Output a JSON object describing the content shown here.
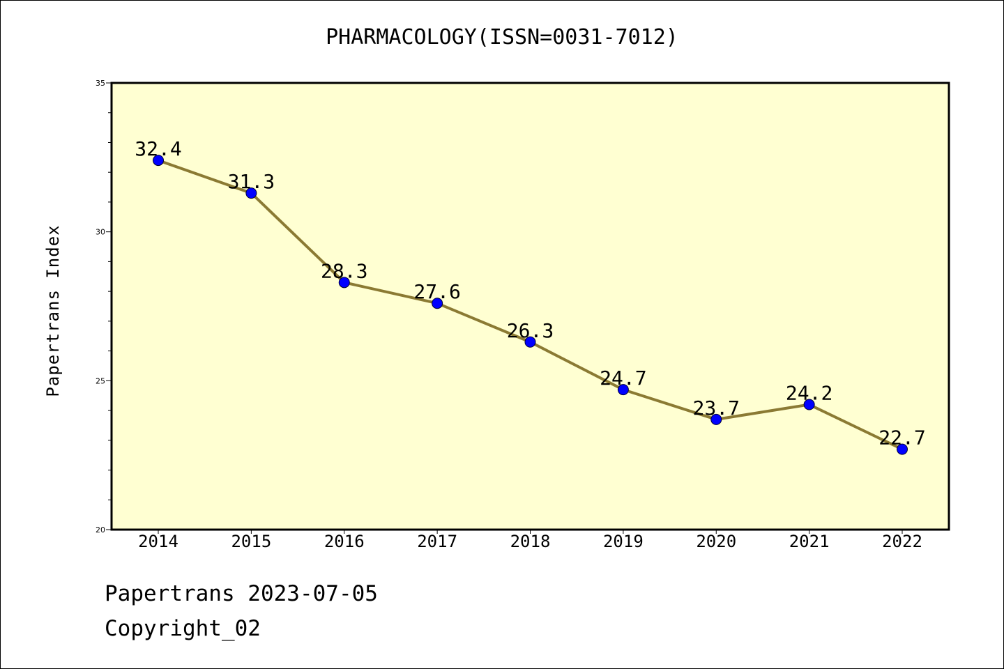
{
  "chart_data": {
    "type": "line",
    "title": "PHARMACOLOGY(ISSN=0031-7012)",
    "ylabel": "Papertrans Index",
    "xlabel": "",
    "categories": [
      "2014",
      "2015",
      "2016",
      "2017",
      "2018",
      "2019",
      "2020",
      "2021",
      "2022"
    ],
    "series": [
      {
        "values": [
          32.4,
          31.3,
          28.3,
          27.6,
          26.3,
          24.7,
          23.7,
          24.2,
          22.7
        ],
        "labels": [
          "32.4",
          "31.3",
          "28.3",
          "27.6",
          "26.3",
          "24.7",
          "23.7",
          "24.2",
          "22.7"
        ]
      }
    ],
    "ylim": [
      20,
      35
    ],
    "yticks": [
      20,
      25,
      30,
      35
    ],
    "ytick_labels": [
      "20",
      "25",
      "30",
      "35"
    ],
    "y_minor_step": 1,
    "grid": false,
    "legend": "none",
    "colors": {
      "plot_background": "#ffffd2",
      "line": "#8b7a33",
      "marker": "#0000ff",
      "axis": "#000000"
    }
  },
  "footer": {
    "line1": "Papertrans 2023-07-05",
    "line2": "Copyright_02"
  }
}
